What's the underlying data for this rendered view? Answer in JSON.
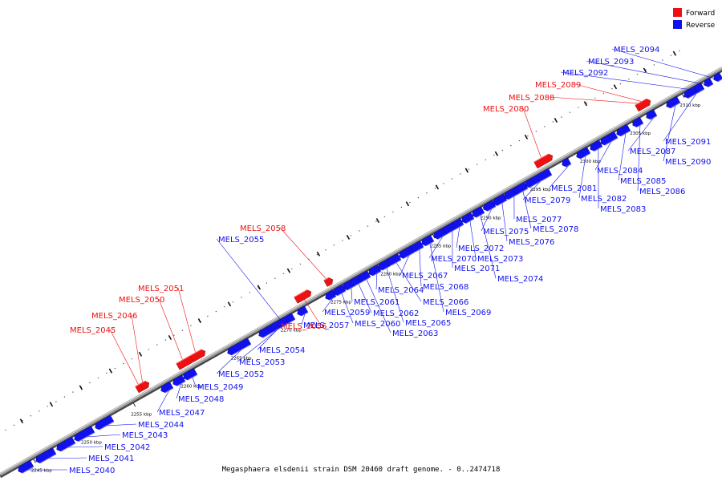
{
  "title": "Megasphaera elsdenii strain DSM 20460 draft genome. - 0..2474718",
  "colors": {
    "forward": "#ee1111",
    "reverse": "#1111ee",
    "backbone": "#9a9a9a"
  },
  "legend": [
    {
      "label": "Forward",
      "strand": "forward"
    },
    {
      "label": "Reverse",
      "strand": "reverse"
    }
  ],
  "ticks": [
    "2245 kbp",
    "2250 kbp",
    "2255 kbp",
    "2260 kbp",
    "2265 kbp",
    "2270 kbp",
    "2275 kbp",
    "2280 kbp",
    "2285 kbp",
    "2290 kbp",
    "2295 kbp",
    "2300 kbp",
    "2305 kbp",
    "2310 kbp"
  ],
  "genes": [
    {
      "label": "MELS_2040",
      "strand": "reverse"
    },
    {
      "label": "MELS_2041",
      "strand": "reverse"
    },
    {
      "label": "MELS_2042",
      "strand": "reverse"
    },
    {
      "label": "MELS_2043",
      "strand": "reverse"
    },
    {
      "label": "MELS_2044",
      "strand": "reverse"
    },
    {
      "label": "MELS_2045",
      "strand": "forward"
    },
    {
      "label": "MELS_2046",
      "strand": "forward"
    },
    {
      "label": "MELS_2047",
      "strand": "reverse"
    },
    {
      "label": "MELS_2048",
      "strand": "reverse"
    },
    {
      "label": "MELS_2049",
      "strand": "reverse"
    },
    {
      "label": "MELS_2050",
      "strand": "forward"
    },
    {
      "label": "MELS_2051",
      "strand": "forward"
    },
    {
      "label": "MELS_2052",
      "strand": "reverse"
    },
    {
      "label": "MELS_2053",
      "strand": "reverse"
    },
    {
      "label": "MELS_2054",
      "strand": "reverse"
    },
    {
      "label": "MELS_2055",
      "strand": "reverse"
    },
    {
      "label": "MELS_2056",
      "strand": "forward"
    },
    {
      "label": "MELS_2057",
      "strand": "reverse"
    },
    {
      "label": "MELS_2058",
      "strand": "forward"
    },
    {
      "label": "MELS_2059",
      "strand": "reverse"
    },
    {
      "label": "MELS_2060",
      "strand": "reverse"
    },
    {
      "label": "MELS_2061",
      "strand": "reverse"
    },
    {
      "label": "MELS_2062",
      "strand": "reverse"
    },
    {
      "label": "MELS_2063",
      "strand": "reverse"
    },
    {
      "label": "MELS_2064",
      "strand": "reverse"
    },
    {
      "label": "MELS_2065",
      "strand": "reverse"
    },
    {
      "label": "MELS_2066",
      "strand": "reverse"
    },
    {
      "label": "MELS_2067",
      "strand": "reverse"
    },
    {
      "label": "MELS_2068",
      "strand": "reverse"
    },
    {
      "label": "MELS_2069",
      "strand": "reverse"
    },
    {
      "label": "MELS_2070",
      "strand": "reverse"
    },
    {
      "label": "MELS_2071",
      "strand": "reverse"
    },
    {
      "label": "MELS_2072",
      "strand": "reverse"
    },
    {
      "label": "MELS_2073",
      "strand": "reverse"
    },
    {
      "label": "MELS_2074",
      "strand": "reverse"
    },
    {
      "label": "MELS_2075",
      "strand": "reverse"
    },
    {
      "label": "MELS_2076",
      "strand": "reverse"
    },
    {
      "label": "MELS_2077",
      "strand": "reverse"
    },
    {
      "label": "MELS_2078",
      "strand": "reverse"
    },
    {
      "label": "MELS_2079",
      "strand": "reverse"
    },
    {
      "label": "MELS_2080",
      "strand": "forward"
    },
    {
      "label": "MELS_2081",
      "strand": "reverse"
    },
    {
      "label": "MELS_2082",
      "strand": "reverse"
    },
    {
      "label": "MELS_2083",
      "strand": "reverse"
    },
    {
      "label": "MELS_2084",
      "strand": "reverse"
    },
    {
      "label": "MELS_2085",
      "strand": "reverse"
    },
    {
      "label": "MELS_2086",
      "strand": "reverse"
    },
    {
      "label": "MELS_2087",
      "strand": "reverse"
    },
    {
      "label": "MELS_2088",
      "strand": "forward"
    },
    {
      "label": "MELS_2089",
      "strand": "forward"
    },
    {
      "label": "MELS_2090",
      "strand": "reverse"
    },
    {
      "label": "MELS_2091",
      "strand": "reverse"
    },
    {
      "label": "MELS_2092",
      "strand": "reverse"
    },
    {
      "label": "MELS_2093",
      "strand": "reverse"
    },
    {
      "label": "MELS_2094",
      "strand": "reverse"
    }
  ]
}
